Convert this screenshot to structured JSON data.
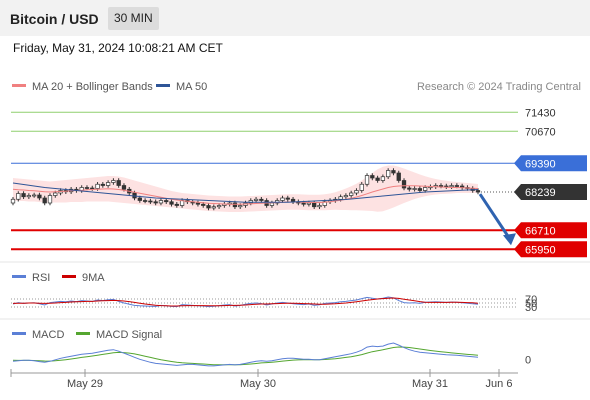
{
  "header": {
    "instrument": "Bitcoin / USD",
    "timeframe": "30 MIN",
    "datetime": "Friday, May 31, 2024 10:08:21 AM CET"
  },
  "colors": {
    "ma20": "#f08080",
    "ma50": "#2f5597",
    "bollinger_fill": "#fde2e2",
    "resistance": "#8fcf6f",
    "pivot": "#3a6fd8",
    "support": "#e00000",
    "candle_up": "#ffffff",
    "candle_down": "#333333",
    "arrow": "#2f63b0",
    "rsi": "#5b7fd6",
    "rsi_ma": "#cc0000",
    "macd": "#5b7fd6",
    "macd_signal": "#55a630"
  },
  "chart_data": [
    {
      "type": "candlestick",
      "legend": [
        {
          "label": "MA 20 + Bollinger Bands",
          "color": "#f08080"
        },
        {
          "label": "MA 50",
          "color": "#2f5597"
        }
      ],
      "credit": "Research © 2024 Trading Central",
      "x_labels": [
        "May 29",
        "May 30",
        "May 31",
        "Jun 6"
      ],
      "y_range": [
        65600,
        72000
      ],
      "levels": [
        {
          "value": 71430,
          "label": "71430",
          "kind": "resistance"
        },
        {
          "value": 70670,
          "label": "70670",
          "kind": "resistance"
        },
        {
          "value": 69390,
          "label": "69390",
          "kind": "pivot"
        },
        {
          "value": 68239,
          "label": "68239",
          "kind": "last_price"
        },
        {
          "value": 66710,
          "label": "66710",
          "kind": "support"
        },
        {
          "value": 65950,
          "label": "65950",
          "kind": "support"
        }
      ],
      "arrow_target": 65950,
      "close": [
        67950,
        68180,
        68050,
        68100,
        68120,
        68000,
        67800,
        68100,
        68200,
        68300,
        68250,
        68350,
        68300,
        68420,
        68400,
        68380,
        68550,
        68500,
        68620,
        68700,
        68500,
        68350,
        68200,
        68000,
        67900,
        67880,
        67850,
        67800,
        67900,
        67850,
        67750,
        67700,
        67900,
        67850,
        67800,
        67750,
        67700,
        67600,
        67650,
        67700,
        67750,
        67800,
        67650,
        67700,
        67800,
        67900,
        67950,
        67900,
        67700,
        67800,
        67900,
        68000,
        67950,
        67850,
        67800,
        67750,
        67800,
        67650,
        67700,
        67850,
        67900,
        67950,
        68050,
        68100,
        68200,
        68300,
        68550,
        68900,
        68800,
        68700,
        68850,
        69100,
        69000,
        68700,
        68400,
        68350,
        68380,
        68300,
        68420,
        68450,
        68500,
        68480,
        68450,
        68500,
        68480,
        68420,
        68380,
        68300,
        68239
      ],
      "open": [
        67800,
        67950,
        68180,
        68050,
        68100,
        68120,
        68000,
        67800,
        68100,
        68200,
        68300,
        68250,
        68350,
        68300,
        68420,
        68400,
        68380,
        68550,
        68500,
        68620,
        68700,
        68500,
        68350,
        68200,
        68000,
        67900,
        67880,
        67850,
        67800,
        67900,
        67850,
        67750,
        67700,
        67900,
        67850,
        67800,
        67750,
        67700,
        67600,
        67650,
        67700,
        67750,
        67800,
        67650,
        67700,
        67800,
        67900,
        67950,
        67900,
        67700,
        67800,
        67900,
        68000,
        67950,
        67850,
        67800,
        67750,
        67800,
        67650,
        67700,
        67850,
        67900,
        67950,
        68050,
        68100,
        68200,
        68300,
        68550,
        68900,
        68800,
        68700,
        68850,
        69100,
        69000,
        68700,
        68400,
        68350,
        68380,
        68300,
        68420,
        68450,
        68500,
        68480,
        68450,
        68500,
        68480,
        68420,
        68380,
        68300
      ],
      "ma20": [
        68350,
        68330,
        68320,
        68300,
        68290,
        68270,
        68250,
        68240,
        68250,
        68260,
        68270,
        68290,
        68300,
        68310,
        68330,
        68340,
        68350,
        68360,
        68370,
        68360,
        68340,
        68310,
        68270,
        68230,
        68190,
        68150,
        68110,
        68070,
        68030,
        67990,
        67950,
        67920,
        67890,
        67870,
        67850,
        67830,
        67810,
        67790,
        67780,
        67770,
        67760,
        67750,
        67750,
        67750,
        67760,
        67770,
        67780,
        67790,
        67800,
        67810,
        67820,
        67830,
        67840,
        67840,
        67840,
        67830,
        67820,
        67820,
        67820,
        67830,
        67850,
        67880,
        67910,
        67950,
        67990,
        68040,
        68100,
        68170,
        68240,
        68300,
        68360,
        68420,
        68460,
        68480,
        68490,
        68490,
        68490,
        68480,
        68470,
        68460,
        68450,
        68440,
        68430,
        68420,
        68420,
        68410,
        68400,
        68390,
        68380
      ],
      "ma50": [
        68600,
        68570,
        68540,
        68510,
        68480,
        68450,
        68420,
        68400,
        68380,
        68360,
        68340,
        68320,
        68300,
        68280,
        68260,
        68240,
        68220,
        68200,
        68180,
        68160,
        68140,
        68120,
        68100,
        68080,
        68060,
        68040,
        68020,
        68000,
        67990,
        67980,
        67970,
        67960,
        67950,
        67940,
        67930,
        67920,
        67910,
        67900,
        67890,
        67880,
        67870,
        67860,
        67850,
        67840,
        67830,
        67830,
        67830,
        67830,
        67830,
        67830,
        67830,
        67830,
        67830,
        67840,
        67850,
        67860,
        67870,
        67880,
        67890,
        67900,
        67910,
        67920,
        67930,
        67940,
        67960,
        67980,
        68000,
        68020,
        68040,
        68060,
        68080,
        68100,
        68120,
        68140,
        68160,
        68180,
        68200,
        68220,
        68240,
        68250,
        68260,
        68270,
        68280,
        68290,
        68300,
        68310,
        68320,
        68330,
        68340
      ],
      "bb_upper": [
        68800,
        68780,
        68760,
        68740,
        68720,
        68700,
        68680,
        68660,
        68680,
        68700,
        68720,
        68740,
        68760,
        68780,
        68800,
        68820,
        68840,
        68860,
        68880,
        68880,
        68860,
        68820,
        68760,
        68700,
        68640,
        68580,
        68520,
        68460,
        68400,
        68340,
        68280,
        68240,
        68200,
        68180,
        68160,
        68140,
        68120,
        68100,
        68090,
        68080,
        68070,
        68060,
        68060,
        68060,
        68070,
        68080,
        68090,
        68100,
        68110,
        68120,
        68130,
        68140,
        68150,
        68150,
        68150,
        68140,
        68130,
        68130,
        68130,
        68150,
        68180,
        68230,
        68300,
        68380,
        68470,
        68570,
        68700,
        68850,
        69000,
        69150,
        69250,
        69300,
        69300,
        69250,
        69180,
        69100,
        69020,
        68940,
        68870,
        68810,
        68760,
        68720,
        68690,
        68660,
        68640,
        68620,
        68600,
        68580,
        68560
      ],
      "bb_lower": [
        67900,
        67880,
        67880,
        67860,
        67860,
        67840,
        67820,
        67820,
        67820,
        67820,
        67820,
        67840,
        67840,
        67840,
        67860,
        67860,
        67860,
        67860,
        67860,
        67840,
        67820,
        67800,
        67780,
        67760,
        67740,
        67720,
        67700,
        67680,
        67660,
        67640,
        67620,
        67600,
        67580,
        67560,
        67540,
        67520,
        67500,
        67480,
        67470,
        67460,
        67450,
        67440,
        67440,
        67440,
        67450,
        67460,
        67470,
        67480,
        67490,
        67500,
        67510,
        67520,
        67530,
        67530,
        67530,
        67520,
        67510,
        67510,
        67510,
        67510,
        67520,
        67530,
        67520,
        67520,
        67510,
        67510,
        67500,
        67490,
        67480,
        67450,
        67470,
        67540,
        67620,
        67710,
        67800,
        67880,
        67960,
        68020,
        68070,
        68110,
        68140,
        68160,
        68170,
        68180,
        68200,
        68200,
        68200,
        68200,
        68200
      ]
    },
    {
      "type": "line",
      "legend": [
        {
          "label": "RSI",
          "color": "#5b7fd6"
        },
        {
          "label": "9MA",
          "color": "#cc0000"
        }
      ],
      "y_range": [
        0,
        100
      ],
      "levels": [
        {
          "value": 70,
          "label": "70"
        },
        {
          "value": 50,
          "label": "50"
        },
        {
          "value": 30,
          "label": "30"
        }
      ],
      "rsi": [
        45,
        52,
        48,
        50,
        51,
        46,
        40,
        52,
        55,
        58,
        56,
        60,
        57,
        62,
        60,
        58,
        65,
        62,
        66,
        68,
        58,
        50,
        44,
        38,
        36,
        35,
        34,
        33,
        38,
        36,
        33,
        32,
        42,
        40,
        38,
        36,
        35,
        32,
        34,
        37,
        40,
        42,
        35,
        38,
        44,
        48,
        50,
        47,
        40,
        45,
        50,
        53,
        50,
        46,
        44,
        42,
        45,
        38,
        41,
        48,
        50,
        52,
        56,
        58,
        62,
        65,
        72,
        78,
        74,
        70,
        74,
        80,
        76,
        62,
        52,
        50,
        51,
        48,
        54,
        55,
        56,
        55,
        53,
        55,
        54,
        51,
        49,
        46,
        44
      ],
      "rsi_ma": [
        48,
        49,
        49,
        50,
        50,
        49,
        48,
        49,
        50,
        52,
        53,
        55,
        56,
        57,
        58,
        58,
        60,
        61,
        62,
        63,
        62,
        60,
        57,
        53,
        49,
        45,
        42,
        39,
        37,
        36,
        35,
        35,
        36,
        37,
        37,
        37,
        37,
        36,
        36,
        36,
        37,
        38,
        38,
        39,
        40,
        42,
        44,
        45,
        45,
        46,
        47,
        48,
        49,
        49,
        48,
        47,
        46,
        45,
        44,
        44,
        45,
        46,
        48,
        50,
        53,
        56,
        60,
        64,
        67,
        70,
        72,
        74,
        75,
        73,
        69,
        65,
        61,
        57,
        54,
        53,
        53,
        53,
        53,
        54,
        54,
        53,
        52,
        51,
        49
      ]
    },
    {
      "type": "line",
      "legend": [
        {
          "label": "MACD",
          "color": "#5b7fd6"
        },
        {
          "label": "MACD Signal",
          "color": "#55a630"
        }
      ],
      "y_range": [
        -250,
        380
      ],
      "levels": [
        {
          "value": 0,
          "label": "0"
        }
      ],
      "macd": [
        -40,
        -30,
        -20,
        -20,
        -30,
        -45,
        -60,
        -40,
        -10,
        20,
        40,
        60,
        80,
        100,
        110,
        120,
        140,
        160,
        180,
        190,
        160,
        120,
        80,
        40,
        0,
        -30,
        -60,
        -80,
        -90,
        -100,
        -110,
        -120,
        -110,
        -100,
        -100,
        -110,
        -120,
        -130,
        -130,
        -120,
        -110,
        -100,
        -110,
        -100,
        -80,
        -60,
        -40,
        -30,
        -40,
        -30,
        -10,
        10,
        20,
        20,
        10,
        0,
        0,
        -10,
        -10,
        10,
        30,
        50,
        70,
        90,
        110,
        140,
        180,
        240,
        260,
        250,
        260,
        300,
        320,
        280,
        230,
        190,
        160,
        140,
        130,
        120,
        110,
        100,
        90,
        85,
        80,
        70,
        60,
        50,
        40
      ],
      "macd_signal": [
        -20,
        -22,
        -22,
        -22,
        -24,
        -28,
        -34,
        -35,
        -30,
        -20,
        -8,
        6,
        21,
        37,
        51,
        65,
        80,
        96,
        113,
        128,
        135,
        132,
        122,
        106,
        85,
        62,
        38,
        14,
        -7,
        -26,
        -43,
        -59,
        -69,
        -75,
        -80,
        -86,
        -93,
        -100,
        -106,
        -109,
        -109,
        -107,
        -107,
        -106,
        -100,
        -92,
        -82,
        -71,
        -65,
        -58,
        -48,
        -36,
        -25,
        -16,
        -11,
        -9,
        -7,
        -7,
        -8,
        -4,
        3,
        12,
        24,
        37,
        52,
        70,
        92,
        122,
        150,
        170,
        188,
        210,
        232,
        242,
        240,
        232,
        218,
        202,
        188,
        174,
        161,
        149,
        137,
        127,
        117,
        107,
        97,
        88,
        78
      ]
    }
  ]
}
